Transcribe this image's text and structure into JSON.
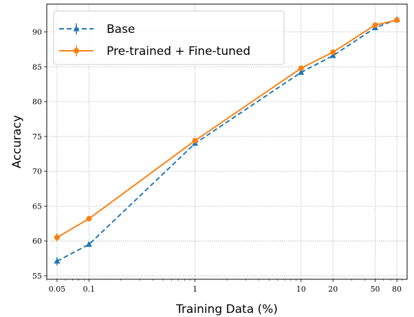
{
  "chart_data": {
    "type": "line",
    "xlabel": "Training Data (%)",
    "ylabel": "Accuracy",
    "xscale": "log",
    "xlim": [
      0.04,
      100
    ],
    "ylim": [
      54.5,
      94
    ],
    "x": [
      0.05,
      0.1,
      1,
      10,
      20,
      50,
      80
    ],
    "x_tick_labels": [
      "0.05",
      "0.1",
      "1",
      "10",
      "20",
      "50",
      "80"
    ],
    "y_ticks": [
      55,
      60,
      65,
      70,
      75,
      80,
      85,
      90
    ],
    "grid": true,
    "legend_position": "top-left",
    "series": [
      {
        "name": "Base",
        "values": [
          57.1,
          59.5,
          74.0,
          84.2,
          86.6,
          90.6,
          91.8
        ],
        "errors": [
          0.6,
          0.3,
          0.2,
          0.2,
          0.2,
          0.2,
          0.2
        ],
        "color": "#1f77b4",
        "linestyle": "dashed",
        "marker": "triangle"
      },
      {
        "name": "Pre-trained + Fine-tuned",
        "values": [
          60.5,
          63.2,
          74.4,
          84.8,
          87.1,
          91.0,
          91.7
        ],
        "errors": [
          0.6,
          0.2,
          0.2,
          0.2,
          0.2,
          0.2,
          0.2
        ],
        "color": "#ff7f0e",
        "linestyle": "solid",
        "marker": "circle"
      }
    ]
  }
}
